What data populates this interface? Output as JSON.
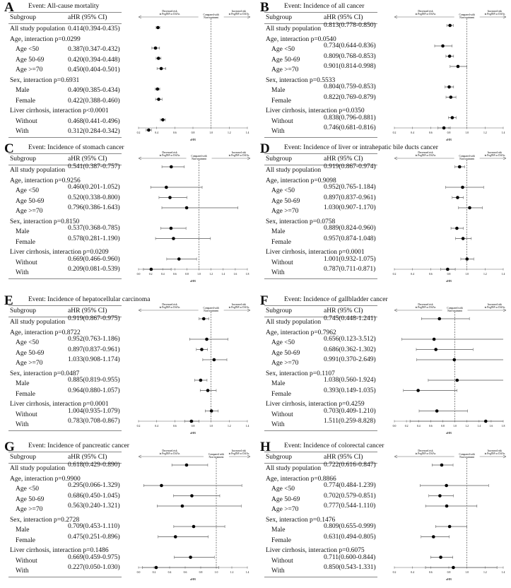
{
  "common": {
    "subgroup_header": "Subgroup",
    "ahr_header": "aHR (95% CI)",
    "decreased": [
      "Decreased risk",
      "in PegINF or DAAs"
    ],
    "compared": [
      "Compared with",
      "Non-treatment"
    ],
    "increased": [
      "Increased risk",
      "in PegINF or DAAs"
    ],
    "xlabel": "aHR"
  },
  "chart_data": [
    {
      "type": "forest",
      "letter": "A",
      "title": "Event: All-cause mortality",
      "xlim": [
        0.2,
        1.4
      ],
      "ticks": [
        "0.2",
        "0.4",
        "0.6",
        "0.8",
        "1.0",
        "1.2",
        "1.4"
      ],
      "rows": [
        {
          "label": "All study population",
          "text": "0.414(0.394-0.435)",
          "hr": 0.414,
          "lo": 0.394,
          "hi": 0.435
        },
        {
          "label": "Age, interaction p=0.0299"
        },
        {
          "label": "Age <50",
          "sub": true,
          "text": "0.387(0.347-0.432)",
          "hr": 0.387,
          "lo": 0.347,
          "hi": 0.432
        },
        {
          "label": "Age 50-69",
          "sub": true,
          "text": "0.420(0.394-0.448)",
          "hr": 0.42,
          "lo": 0.394,
          "hi": 0.448
        },
        {
          "label": "Age >=70",
          "sub": true,
          "text": "0.450(0.404-0.501)",
          "hr": 0.45,
          "lo": 0.404,
          "hi": 0.501
        },
        {
          "label": "Sex, interaction p=0.6931"
        },
        {
          "label": "Male",
          "sub": true,
          "text": "0.409(0.385-0.434)",
          "hr": 0.409,
          "lo": 0.385,
          "hi": 0.434
        },
        {
          "label": "Female",
          "sub": true,
          "text": "0.422(0.388-0.460)",
          "hr": 0.422,
          "lo": 0.388,
          "hi": 0.46
        },
        {
          "label": "Liver cirrhosis, interaction p<0.0001"
        },
        {
          "label": "Without",
          "sub": true,
          "text": "0.468(0.441-0.496)",
          "hr": 0.468,
          "lo": 0.441,
          "hi": 0.496
        },
        {
          "label": "With",
          "sub": true,
          "text": "0.312(0.284-0.342)",
          "hr": 0.312,
          "lo": 0.284,
          "hi": 0.342
        }
      ]
    },
    {
      "type": "forest",
      "letter": "B",
      "title": "Event: Incidence of all cancer",
      "xlim": [
        0.2,
        1.4
      ],
      "ticks": [
        "0.2",
        "0.4",
        "0.6",
        "0.8",
        "1.0",
        "1.2",
        "1.4"
      ],
      "rows": [
        {
          "label": "All study population",
          "text": "0.813(0.778-0.850)",
          "hr": 0.813,
          "lo": 0.778,
          "hi": 0.85
        },
        {
          "label": "Age, interaction p=0.0540"
        },
        {
          "label": "Age <50",
          "sub": true,
          "text": "0.734(0.644-0.836)",
          "hr": 0.734,
          "lo": 0.644,
          "hi": 0.836
        },
        {
          "label": "Age 50-69",
          "sub": true,
          "text": "0.809(0.768-0.853)",
          "hr": 0.809,
          "lo": 0.768,
          "hi": 0.853
        },
        {
          "label": "Age >=70",
          "sub": true,
          "text": "0.901(0.814-0.998)",
          "hr": 0.901,
          "lo": 0.814,
          "hi": 0.998
        },
        {
          "label": "Sex, interaction p=0.5533"
        },
        {
          "label": "Male",
          "sub": true,
          "text": "0.804(0.759-0.853)",
          "hr": 0.804,
          "lo": 0.759,
          "hi": 0.853
        },
        {
          "label": "Female",
          "sub": true,
          "text": "0.822(0.769-0.879)",
          "hr": 0.822,
          "lo": 0.769,
          "hi": 0.879
        },
        {
          "label": "Liver cirrhosis, interaction p=0.0350"
        },
        {
          "label": "Without",
          "sub": true,
          "text": "0.838(0.796-0.881)",
          "hr": 0.838,
          "lo": 0.796,
          "hi": 0.881
        },
        {
          "label": "With",
          "sub": true,
          "text": "0.746(0.681-0.816)",
          "hr": 0.746,
          "lo": 0.681,
          "hi": 0.816
        }
      ]
    },
    {
      "type": "forest",
      "letter": "C",
      "title": "Event: Incidence of stomach cancer",
      "xlim": [
        0.0,
        1.8
      ],
      "ticks": [
        "0.0",
        "0.2",
        "0.4",
        "0.6",
        "0.8",
        "1.0",
        "1.2",
        "1.4",
        "1.6",
        "1.8"
      ],
      "rows": [
        {
          "label": "All study population",
          "text": "0.541(0.387-0.757)",
          "hr": 0.541,
          "lo": 0.387,
          "hi": 0.757
        },
        {
          "label": "Age, interaction p=0.9256"
        },
        {
          "label": "Age <50",
          "sub": true,
          "text": "0.460(0.201-1.052)",
          "hr": 0.46,
          "lo": 0.201,
          "hi": 1.052
        },
        {
          "label": "Age 50-69",
          "sub": true,
          "text": "0.520(0.338-0.800)",
          "hr": 0.52,
          "lo": 0.338,
          "hi": 0.8
        },
        {
          "label": "Age >=70",
          "sub": true,
          "text": "0.796(0.386-1.643)",
          "hr": 0.796,
          "lo": 0.386,
          "hi": 1.643
        },
        {
          "label": "Sex, interaction p=0.8150"
        },
        {
          "label": "Male",
          "sub": true,
          "text": "0.537(0.368-0.785)",
          "hr": 0.537,
          "lo": 0.368,
          "hi": 0.785
        },
        {
          "label": "Female",
          "sub": true,
          "text": "0.578(0.281-1.190)",
          "hr": 0.578,
          "lo": 0.281,
          "hi": 1.19
        },
        {
          "label": "Liver cirrhosis, interaction p=0.0209"
        },
        {
          "label": "Without",
          "sub": true,
          "text": "0.669(0.466-0.960)",
          "hr": 0.669,
          "lo": 0.466,
          "hi": 0.96
        },
        {
          "label": "With",
          "sub": true,
          "text": "0.209(0.081-0.539)",
          "hr": 0.209,
          "lo": 0.081,
          "hi": 0.539
        }
      ]
    },
    {
      "type": "forest",
      "letter": "D",
      "title": "Event: Incidence of liver or intrahepatic bile ducts cancer",
      "xlim": [
        0.2,
        1.4
      ],
      "ticks": [
        "0.2",
        "0.4",
        "0.6",
        "0.8",
        "1.0",
        "1.2",
        "1.4"
      ],
      "rows": [
        {
          "label": "All study population",
          "text": "0.919(0.867-0.974)",
          "hr": 0.919,
          "lo": 0.867,
          "hi": 0.974
        },
        {
          "label": "Age, interaction p=0.9098"
        },
        {
          "label": "Age <50",
          "sub": true,
          "text": "0.952(0.765-1.184)",
          "hr": 0.952,
          "lo": 0.765,
          "hi": 1.184
        },
        {
          "label": "Age 50-69",
          "sub": true,
          "text": "0.897(0.837-0.961)",
          "hr": 0.897,
          "lo": 0.837,
          "hi": 0.961
        },
        {
          "label": "Age >=70",
          "sub": true,
          "text": "1.030(0.907-1.170)",
          "hr": 1.03,
          "lo": 0.907,
          "hi": 1.17
        },
        {
          "label": "Sex, interaction p=0.0758"
        },
        {
          "label": "Male",
          "sub": true,
          "text": "0.889(0.824-0.960)",
          "hr": 0.889,
          "lo": 0.824,
          "hi": 0.96
        },
        {
          "label": "Female",
          "sub": true,
          "text": "0.957(0.874-1.048)",
          "hr": 0.957,
          "lo": 0.874,
          "hi": 1.048
        },
        {
          "label": "Liver cirrhosis, interaction p=0.0001"
        },
        {
          "label": "Without",
          "sub": true,
          "text": "1.001(0.932-1.075)",
          "hr": 1.001,
          "lo": 0.932,
          "hi": 1.075
        },
        {
          "label": "With",
          "sub": true,
          "text": "0.787(0.711-0.871)",
          "hr": 0.787,
          "lo": 0.711,
          "hi": 0.871
        }
      ]
    },
    {
      "type": "forest",
      "letter": "E",
      "title": "Event: Incidence of hepatocellular carcinoma",
      "xlim": [
        0.2,
        1.4
      ],
      "ticks": [
        "0.2",
        "0.4",
        "0.6",
        "0.8",
        "1.0",
        "1.2",
        "1.4"
      ],
      "rows": [
        {
          "label": "All study population",
          "text": "0.919(0.867-0.975)",
          "hr": 0.919,
          "lo": 0.867,
          "hi": 0.975
        },
        {
          "label": "Age, interaction p=0.8722"
        },
        {
          "label": "Age <50",
          "sub": true,
          "text": "0.952(0.763-1.186)",
          "hr": 0.952,
          "lo": 0.763,
          "hi": 1.186
        },
        {
          "label": "Age 50-69",
          "sub": true,
          "text": "0.897(0.837-0.961)",
          "hr": 0.897,
          "lo": 0.837,
          "hi": 0.961
        },
        {
          "label": "Age >=70",
          "sub": true,
          "text": "1.033(0.908-1.174)",
          "hr": 1.033,
          "lo": 0.908,
          "hi": 1.174
        },
        {
          "label": "Sex, interaction p=0.0487"
        },
        {
          "label": "Male",
          "sub": true,
          "text": "0.885(0.819-0.955)",
          "hr": 0.885,
          "lo": 0.819,
          "hi": 0.955
        },
        {
          "label": "Female",
          "sub": true,
          "text": "0.964(0.880-1.057)",
          "hr": 0.964,
          "lo": 0.88,
          "hi": 1.057
        },
        {
          "label": "Liver cirrhosis, interaction p=0.0001"
        },
        {
          "label": "Without",
          "sub": true,
          "text": "1.004(0.935-1.079)",
          "hr": 1.004,
          "lo": 0.935,
          "hi": 1.079
        },
        {
          "label": "With",
          "sub": true,
          "text": "0.783(0.708-0.867)",
          "hr": 0.783,
          "lo": 0.708,
          "hi": 0.867
        }
      ]
    },
    {
      "type": "forest",
      "letter": "F",
      "title": "Event: Incidence of gallbladder cancer",
      "xlim": [
        0.0,
        1.8
      ],
      "ticks": [
        "0.0",
        "0.2",
        "0.4",
        "0.6",
        "0.8",
        "1.0",
        "1.2",
        "1.4",
        "1.6",
        "1.8"
      ],
      "rows": [
        {
          "label": "All study population",
          "text": "0.745(0.448-1.241)",
          "hr": 0.745,
          "lo": 0.448,
          "hi": 1.241
        },
        {
          "label": "Age, interaction p=0.7962"
        },
        {
          "label": "Age <50",
          "sub": true,
          "text": "0.656(0.123-3.512)",
          "hr": 0.656,
          "lo": 0.123,
          "hi": 3.512
        },
        {
          "label": "Age 50-69",
          "sub": true,
          "text": "0.686(0.362-1.302)",
          "hr": 0.686,
          "lo": 0.362,
          "hi": 1.302
        },
        {
          "label": "Age >=70",
          "sub": true,
          "text": "0.991(0.370-2.649)",
          "hr": 0.991,
          "lo": 0.37,
          "hi": 2.649
        },
        {
          "label": "Sex, interaction p=0.1107"
        },
        {
          "label": "Male",
          "sub": true,
          "text": "1.038(0.560-1.924)",
          "hr": 1.038,
          "lo": 0.56,
          "hi": 1.924
        },
        {
          "label": "Female",
          "sub": true,
          "text": "0.393(0.149-1.035)",
          "hr": 0.393,
          "lo": 0.149,
          "hi": 1.035
        },
        {
          "label": "Liver cirrhosis, interaction p=0.4259"
        },
        {
          "label": "Without",
          "sub": true,
          "text": "0.703(0.409-1.210)",
          "hr": 0.703,
          "lo": 0.409,
          "hi": 1.21
        },
        {
          "label": "With",
          "sub": true,
          "text": "1.511(0.259-8.828)",
          "hr": 1.511,
          "lo": 0.259,
          "hi": 8.828
        }
      ]
    },
    {
      "type": "forest",
      "letter": "G",
      "title": "Event: Incidence of pancreatic cancer",
      "xlim": [
        0.0,
        1.4
      ],
      "ticks": [
        "0.0",
        "0.2",
        "0.4",
        "0.6",
        "0.8",
        "1.0",
        "1.2",
        "1.4"
      ],
      "rows": [
        {
          "label": "All study population",
          "text": "0.618(0.429-0.890)",
          "hr": 0.618,
          "lo": 0.429,
          "hi": 0.89
        },
        {
          "label": "Age, interaction p=0.9900"
        },
        {
          "label": "Age <50",
          "sub": true,
          "text": "0.295(0.066-1.329)",
          "hr": 0.295,
          "lo": 0.066,
          "hi": 1.329
        },
        {
          "label": "Age 50-69",
          "sub": true,
          "text": "0.686(0.450-1.045)",
          "hr": 0.686,
          "lo": 0.45,
          "hi": 1.045
        },
        {
          "label": "Age >=70",
          "sub": true,
          "text": "0.563(0.240-1.321)",
          "hr": 0.563,
          "lo": 0.24,
          "hi": 1.321
        },
        {
          "label": "Sex, interaction p=0.2728"
        },
        {
          "label": "Male",
          "sub": true,
          "text": "0.709(0.453-1.110)",
          "hr": 0.709,
          "lo": 0.453,
          "hi": 1.11
        },
        {
          "label": "Female",
          "sub": true,
          "text": "0.475(0.251-0.896)",
          "hr": 0.475,
          "lo": 0.251,
          "hi": 0.896
        },
        {
          "label": "Liver cirrhosis, interaction p=0.1486"
        },
        {
          "label": "Without",
          "sub": true,
          "text": "0.669(0.459-0.975)",
          "hr": 0.669,
          "lo": 0.459,
          "hi": 0.975
        },
        {
          "label": "With",
          "sub": true,
          "text": "0.227(0.050-1.030)",
          "hr": 0.227,
          "lo": 0.05,
          "hi": 1.03
        }
      ]
    },
    {
      "type": "forest",
      "letter": "H",
      "title": "Event: Incidence of colorectal cancer",
      "xlim": [
        0.2,
        1.4
      ],
      "ticks": [
        "0.2",
        "0.4",
        "0.6",
        "0.8",
        "1.0",
        "1.2",
        "1.4"
      ],
      "rows": [
        {
          "label": "All study population",
          "text": "0.722(0.616-0.847)",
          "hr": 0.722,
          "lo": 0.616,
          "hi": 0.847
        },
        {
          "label": "Age, interaction p=0.8866"
        },
        {
          "label": "Age <50",
          "sub": true,
          "text": "0.774(0.484-1.239)",
          "hr": 0.774,
          "lo": 0.484,
          "hi": 1.239
        },
        {
          "label": "Age 50-69",
          "sub": true,
          "text": "0.702(0.579-0.851)",
          "hr": 0.702,
          "lo": 0.579,
          "hi": 0.851
        },
        {
          "label": "Age >=70",
          "sub": true,
          "text": "0.777(0.544-1.110)",
          "hr": 0.777,
          "lo": 0.544,
          "hi": 1.11
        },
        {
          "label": "Sex, interaction p=0.1476"
        },
        {
          "label": "Male",
          "sub": true,
          "text": "0.809(0.655-0.999)",
          "hr": 0.809,
          "lo": 0.655,
          "hi": 0.999
        },
        {
          "label": "Female",
          "sub": true,
          "text": "0.631(0.494-0.805)",
          "hr": 0.631,
          "lo": 0.494,
          "hi": 0.805
        },
        {
          "label": "Liver cirrhosis, interaction p=0.6075"
        },
        {
          "label": "Without",
          "sub": true,
          "text": "0.711(0.600-0.844)",
          "hr": 0.711,
          "lo": 0.6,
          "hi": 0.844
        },
        {
          "label": "With",
          "sub": true,
          "text": "0.850(0.543-1.331)",
          "hr": 0.85,
          "lo": 0.543,
          "hi": 1.331
        }
      ]
    }
  ]
}
